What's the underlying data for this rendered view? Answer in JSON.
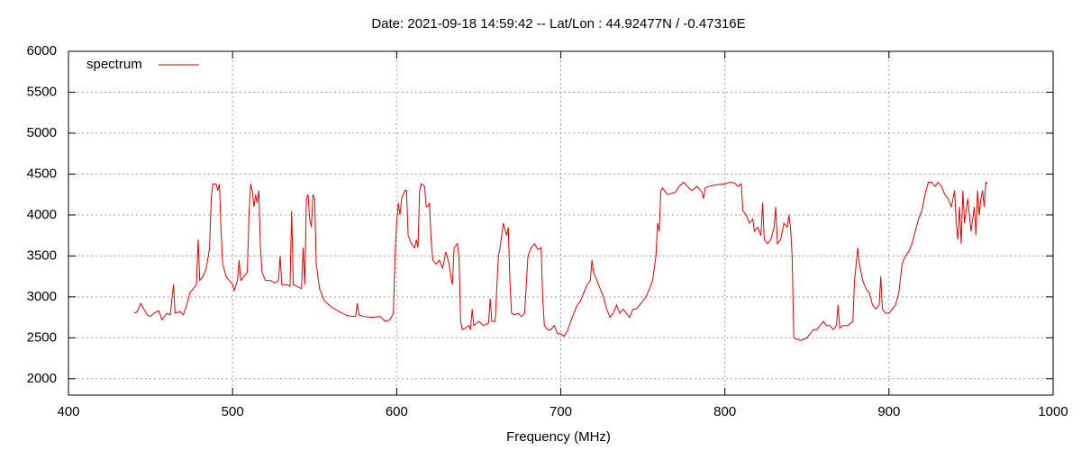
{
  "chart_data": {
    "type": "line",
    "title": "Date: 2021-09-18 14:59:42  --  Lat/Lon : 44.92477N / -0.47316E",
    "x_label": "Frequency (MHz)",
    "xlim": [
      400,
      1000
    ],
    "xticks": [
      400,
      500,
      600,
      700,
      800,
      900,
      1000
    ],
    "ylim": [
      1800,
      6000
    ],
    "yticks": [
      2000,
      2500,
      3000,
      3500,
      4000,
      4500,
      5000,
      5500,
      6000
    ],
    "grid": true,
    "legend": "top-left",
    "series": [
      {
        "name": "spectrum",
        "color": "#e00000",
        "x": [
          440,
          442,
          444,
          446,
          448,
          450,
          452,
          455,
          457,
          460,
          462,
          464,
          465,
          468,
          470,
          472,
          474,
          476,
          478,
          479,
          480,
          482,
          484,
          486,
          487,
          488,
          490,
          491,
          492,
          493,
          494,
          496,
          498,
          500,
          501,
          503,
          504,
          505,
          507,
          509,
          510,
          511,
          512,
          513,
          514,
          515,
          516,
          517,
          518,
          520,
          523,
          526,
          528,
          529,
          530,
          533,
          535,
          536,
          537,
          540,
          542,
          543,
          544,
          545,
          546,
          547,
          548,
          549,
          550,
          551,
          553,
          556,
          560,
          565,
          570,
          575,
          576,
          577,
          580,
          585,
          590,
          593,
          596,
          598,
          599,
          600,
          601,
          602,
          603,
          605,
          606,
          607,
          609,
          611,
          612,
          613,
          614,
          615,
          617,
          618,
          619,
          620,
          621,
          622,
          624,
          626,
          628,
          630,
          632,
          633,
          634,
          635,
          637,
          638,
          639,
          640,
          642,
          644,
          645,
          646,
          647,
          650,
          653,
          656,
          657,
          658,
          660,
          662,
          663,
          665,
          667,
          668,
          669,
          670,
          672,
          674,
          676,
          678,
          680,
          682,
          684,
          686,
          688,
          689,
          690,
          692,
          694,
          696,
          698,
          700,
          702,
          704,
          706,
          708,
          710,
          712,
          714,
          716,
          718,
          719,
          720,
          722,
          724,
          726,
          728,
          730,
          732,
          734,
          736,
          738,
          740,
          742,
          744,
          746,
          748,
          750,
          752,
          754,
          756,
          758,
          759,
          760,
          761,
          762,
          765,
          770,
          772,
          775,
          778,
          780,
          783,
          786,
          787,
          788,
          790,
          795,
          800,
          803,
          806,
          808,
          810,
          811,
          813,
          815,
          817,
          818,
          820,
          822,
          823,
          824,
          826,
          828,
          830,
          831,
          832,
          834,
          836,
          838,
          839,
          840,
          841,
          842,
          844,
          846,
          848,
          850,
          852,
          854,
          856,
          858,
          860,
          862,
          864,
          866,
          868,
          869,
          870,
          872,
          875,
          878,
          879,
          880,
          881,
          882,
          884,
          886,
          888,
          890,
          892,
          894,
          895,
          896,
          898,
          900,
          902,
          904,
          906,
          908,
          910,
          912,
          914,
          916,
          918,
          920,
          922,
          924,
          926,
          928,
          930,
          932,
          934,
          936,
          938,
          940,
          941,
          942,
          943,
          944,
          945,
          946,
          948,
          950,
          952,
          953,
          954,
          955,
          956,
          957,
          958,
          959,
          960
        ],
        "values": [
          2800,
          2820,
          2920,
          2850,
          2780,
          2760,
          2800,
          2830,
          2720,
          2800,
          2780,
          3150,
          2800,
          2820,
          2780,
          2900,
          3050,
          3100,
          3150,
          3700,
          3200,
          3250,
          3350,
          3600,
          4200,
          4380,
          4380,
          4300,
          4380,
          3800,
          3400,
          3250,
          3200,
          3150,
          3080,
          3200,
          3450,
          3200,
          3250,
          3300,
          4000,
          4380,
          4300,
          4100,
          4250,
          4150,
          4300,
          3600,
          3300,
          3200,
          3200,
          3170,
          3200,
          3500,
          3150,
          3150,
          3130,
          4050,
          3150,
          3120,
          3100,
          3600,
          3150,
          4200,
          4250,
          3950,
          3850,
          4250,
          4200,
          3400,
          3100,
          2950,
          2880,
          2820,
          2770,
          2760,
          2920,
          2780,
          2760,
          2750,
          2760,
          2700,
          2720,
          2800,
          3500,
          3900,
          4150,
          4000,
          4200,
          4300,
          4300,
          3750,
          3650,
          3600,
          3700,
          3600,
          4300,
          4380,
          4350,
          4100,
          4100,
          4150,
          3700,
          3450,
          3400,
          3450,
          3350,
          3550,
          3400,
          3250,
          3150,
          3600,
          3650,
          3500,
          2700,
          2600,
          2620,
          2650,
          2600,
          2850,
          2650,
          2700,
          2650,
          2680,
          2980,
          2700,
          2700,
          3500,
          3600,
          3900,
          3750,
          3850,
          3200,
          2800,
          2780,
          2800,
          2760,
          2800,
          3500,
          3600,
          3650,
          3580,
          3600,
          3000,
          2650,
          2600,
          2600,
          2650,
          2550,
          2550,
          2520,
          2580,
          2700,
          2800,
          2900,
          2950,
          3050,
          3150,
          3200,
          3450,
          3300,
          3200,
          3100,
          3000,
          2850,
          2750,
          2800,
          2900,
          2800,
          2850,
          2800,
          2750,
          2850,
          2850,
          2900,
          2950,
          3000,
          3100,
          3200,
          3500,
          3900,
          3800,
          4300,
          4330,
          4250,
          4280,
          4350,
          4400,
          4330,
          4300,
          4350,
          4280,
          4200,
          4330,
          4350,
          4370,
          4380,
          4400,
          4390,
          4350,
          4380,
          4050,
          4000,
          3900,
          3950,
          3800,
          3850,
          3750,
          4150,
          3700,
          3650,
          3700,
          3850,
          4100,
          3650,
          3700,
          3900,
          3850,
          4000,
          3850,
          3500,
          2500,
          2480,
          2470,
          2480,
          2500,
          2550,
          2600,
          2600,
          2650,
          2700,
          2650,
          2650,
          2600,
          2650,
          2900,
          2620,
          2650,
          2650,
          2700,
          3200,
          3400,
          3600,
          3400,
          3200,
          3100,
          3050,
          2900,
          2850,
          2900,
          3250,
          2850,
          2800,
          2800,
          2850,
          2900,
          3050,
          3400,
          3500,
          3550,
          3650,
          3800,
          3950,
          4050,
          4250,
          4400,
          4400,
          4350,
          4400,
          4350,
          4250,
          4200,
          4100,
          4300,
          3900,
          3700,
          4100,
          3650,
          4300,
          3900,
          4200,
          3800,
          4100,
          3750,
          4300,
          4000,
          4200,
          4300,
          4100,
          4400,
          4380
        ]
      }
    ]
  }
}
